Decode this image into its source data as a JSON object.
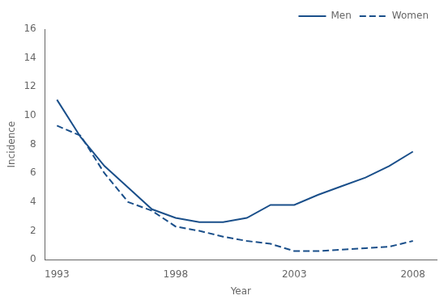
{
  "chart_data": {
    "type": "line",
    "x": [
      1993,
      1994,
      1995,
      1996,
      1997,
      1998,
      1999,
      2000,
      2001,
      2002,
      2003,
      2004,
      2005,
      2006,
      2007,
      2008
    ],
    "series": [
      {
        "name": "Men",
        "color": "#1a4f8a",
        "line_style": "solid",
        "values": [
          11.1,
          8.5,
          6.5,
          5.0,
          3.5,
          2.9,
          2.6,
          2.6,
          2.9,
          3.8,
          3.8,
          4.5,
          5.1,
          5.7,
          6.5,
          7.5
        ]
      },
      {
        "name": "Women",
        "color": "#1a4f8a",
        "line_style": "dashed",
        "values": [
          9.3,
          8.6,
          6.0,
          4.0,
          3.4,
          2.3,
          2.0,
          1.6,
          1.3,
          1.1,
          0.6,
          0.6,
          0.7,
          0.8,
          0.9,
          1.3
        ]
      }
    ],
    "xlabel": "Year",
    "ylabel": "Incidence",
    "xlim": [
      1992.5,
      2009.0
    ],
    "xticks": [
      1993,
      1998,
      2003,
      2008
    ],
    "ylim": [
      0,
      16
    ],
    "yticks": [
      0,
      2,
      4,
      6,
      8,
      10,
      12,
      14,
      16
    ],
    "legend": "upper right",
    "grid": false
  }
}
